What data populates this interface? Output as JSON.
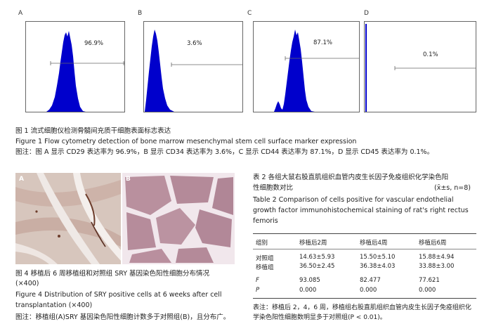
{
  "figure1": {
    "panels": [
      {
        "letter": "A",
        "percent": "96.9%"
      },
      {
        "letter": "B",
        "percent": "3.6%"
      },
      {
        "letter": "C",
        "percent": "87.1%"
      },
      {
        "letter": "D",
        "percent": "0.1%"
      }
    ],
    "caption_cn": "图 1   流式细胞仪检测骨髓间充质干细胞表面标志表达",
    "caption_en": "Figure 1    Flow cytometry detection of bone marrow mesenchymal stem cell surface marker expression",
    "note": "图注：图 A 显示 CD29 表达率为 96.9%，B 显示 CD34 表达率为 3.6%，C 显示 CD44 表达率为 87.1%，D 显示 CD45 表达率为 0.1%。",
    "histogram_color": "#0000cc"
  },
  "figure4": {
    "panels": [
      "A",
      "B"
    ],
    "caption_cn_1": "图 4  移植后 6 周移植组和对照组 SRY 基因染色阳性细胞分布情况",
    "caption_cn_2": "(×400)",
    "caption_en_1": "Figure 4    Distribution of SRY positive cells at 6 weeks after cell",
    "caption_en_2": "transplantation (×400)",
    "note": "图注：移植组(A)SRY 基因染色阳性细胞计数多于对照组(B)，且分布广。"
  },
  "table2": {
    "title_cn_1": "表 2    各组大鼠右股直肌组织血管内皮生长因子免疫组织化学染色阳",
    "title_cn_2": "性细胞数对比",
    "stats_note": "(x̄±s, n=8)",
    "title_en_1": "Table 2    Comparison of cells positive for vascular endothelial",
    "title_en_2": "growth factor immunohistochemical staining of rat's right rectus",
    "title_en_3": "femoris",
    "headers": [
      "组别",
      "移植后2周",
      "移植后4周",
      "移植后6周"
    ],
    "rows": [
      [
        "对照组",
        "14.63±5.93",
        "15.50±5.10",
        "15.88±4.94"
      ],
      [
        "移植组",
        "36.50±2.45",
        "36.38±4.03",
        "33.88±3.00"
      ],
      [
        "F",
        "93.085",
        "82.477",
        "77.621"
      ],
      [
        "P",
        "0.000",
        "0.000",
        "0.000"
      ]
    ],
    "note_1": "表注：移植后 2，4，6 周，移植组右股直肌组织血管内皮生长因子免疫组织化",
    "note_2": "学染色阳性细胞数明显多于对照组(P < 0.01)。"
  }
}
